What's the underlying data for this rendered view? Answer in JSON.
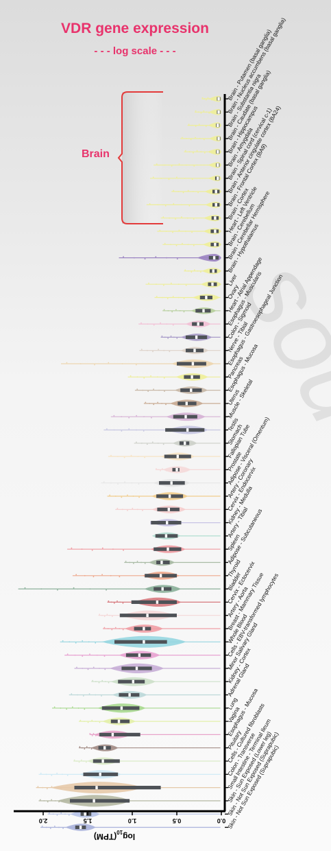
{
  "header": {
    "title": "VDR gene expression",
    "subtitle": "- - - log scale - - -",
    "group_label": "Brain"
  },
  "chart_data": {
    "type": "violin",
    "orientation": "horizontal",
    "title": "VDR gene expression",
    "subtitle": "- - - log scale - - -",
    "xlabel": "log10(TPM)",
    "xlabel_base": "log",
    "xlabel_sub": "10",
    "xlabel_tail": "(TPM)",
    "x_reversed": true,
    "xlim": [
      0,
      2.3
    ],
    "xticks": [
      "2.0",
      "1.5",
      "1.0",
      "0.5",
      "0.0"
    ],
    "xtick_values": [
      2.0,
      1.5,
      1.0,
      0.5,
      0.0
    ],
    "annotation": {
      "label": "Brain",
      "from": "Brain - Putamen (basal ganglia)",
      "to": "Brain - Cerebellar Hemisphere"
    },
    "tissues": [
      {
        "name": "Brain - Putamen (basal ganglia)",
        "color": "#eeee99",
        "median": 0.03,
        "q1": 0.01,
        "q3": 0.05,
        "width": 0.05,
        "max": 0.22
      },
      {
        "name": "Brain - Nucleus accumbens (basal ganglia)",
        "color": "#eeee99",
        "median": 0.03,
        "q1": 0.01,
        "q3": 0.05,
        "width": 0.06,
        "max": 0.3
      },
      {
        "name": "Brain - Substantia nigra",
        "color": "#eeee99",
        "median": 0.04,
        "q1": 0.02,
        "q3": 0.06,
        "width": 0.05,
        "max": 0.38
      },
      {
        "name": "Brain - Caudate (basal ganglia)",
        "color": "#eeee99",
        "median": 0.03,
        "q1": 0.01,
        "q3": 0.05,
        "width": 0.05,
        "max": 0.46
      },
      {
        "name": "Brain - Hippocampus",
        "color": "#eeee99",
        "median": 0.04,
        "q1": 0.02,
        "q3": 0.06,
        "width": 0.06,
        "max": 0.42
      },
      {
        "name": "Brain - Amygdala",
        "color": "#eeee99",
        "median": 0.04,
        "q1": 0.02,
        "q3": 0.06,
        "width": 0.05,
        "max": 0.76
      },
      {
        "name": "Brain - Spinal cord (cervical c-1)",
        "color": "#eeee99",
        "median": 0.04,
        "q1": 0.02,
        "q3": 0.07,
        "width": 0.05,
        "max": 0.8
      },
      {
        "name": "Brain - Anterior cingulate cortex (BA24)",
        "color": "#eeee99",
        "median": 0.06,
        "q1": 0.02,
        "q3": 0.1,
        "width": 0.09,
        "max": 0.56
      },
      {
        "name": "Brain - Frontal Cortex (BA9)",
        "color": "#eeee99",
        "median": 0.06,
        "q1": 0.02,
        "q3": 0.1,
        "width": 0.08,
        "max": 0.84
      },
      {
        "name": "Brain - Cortex",
        "color": "#eeee99",
        "median": 0.07,
        "q1": 0.03,
        "q3": 0.11,
        "width": 0.09,
        "max": 0.68
      },
      {
        "name": "Heart - Left Ventricle",
        "color": "#eeee99",
        "median": 0.07,
        "q1": 0.03,
        "q3": 0.12,
        "width": 0.1,
        "max": 0.72
      },
      {
        "name": "Brain - Cerebellum",
        "color": "#eeee99",
        "median": 0.07,
        "q1": 0.03,
        "q3": 0.12,
        "width": 0.11,
        "max": 0.66
      },
      {
        "name": "Brain - Cerebellar Hemisphere",
        "color": "#9b83c2",
        "median": 0.08,
        "q1": 0.03,
        "q3": 0.14,
        "width": 0.22,
        "max": 1.15
      },
      {
        "name": "Brain - Hypothalamus",
        "color": "#eeee99",
        "median": 0.09,
        "q1": 0.05,
        "q3": 0.13,
        "width": 0.09,
        "max": 0.42
      },
      {
        "name": "Liver",
        "color": "#eeee99",
        "median": 0.1,
        "q1": 0.05,
        "q3": 0.15,
        "width": 0.1,
        "max": 0.85
      },
      {
        "name": "Ovary",
        "color": "#eeee99",
        "median": 0.17,
        "q1": 0.1,
        "q3": 0.24,
        "width": 0.14,
        "max": 0.75
      },
      {
        "name": "Heart - Atrial Appendage",
        "color": "#b7cf9c",
        "median": 0.2,
        "q1": 0.12,
        "q3": 0.29,
        "width": 0.12,
        "max": 0.66
      },
      {
        "name": "Esophagus - Muscularis",
        "color": "#f2c0d5",
        "median": 0.26,
        "q1": 0.2,
        "q3": 0.33,
        "width": 0.12,
        "max": 0.93
      },
      {
        "name": "Colon - Sigmoid",
        "color": "#a89bc9",
        "median": 0.28,
        "q1": 0.16,
        "q3": 0.4,
        "width": 0.19,
        "max": 0.68
      },
      {
        "name": "Nerve - Tibial",
        "color": "#ddd2c8",
        "median": 0.3,
        "q1": 0.2,
        "q3": 0.4,
        "width": 0.15,
        "max": 0.92
      },
      {
        "name": "Esophagus - Gastroesophageal Junction",
        "color": "#edd6b0",
        "median": 0.32,
        "q1": 0.17,
        "q3": 0.5,
        "width": 0.32,
        "max": 1.8
      },
      {
        "name": "Pancreas",
        "color": "#eeee99",
        "median": 0.33,
        "q1": 0.24,
        "q3": 0.42,
        "width": 0.2,
        "max": 1.05
      },
      {
        "name": "Esophagus - Mucosa",
        "color": "#c9b9a8",
        "median": 0.34,
        "q1": 0.22,
        "q3": 0.46,
        "width": 0.21,
        "max": 0.97
      },
      {
        "name": "Uterus",
        "color": "#c9ab93",
        "median": 0.39,
        "q1": 0.28,
        "q3": 0.49,
        "width": 0.21,
        "max": 0.87
      },
      {
        "name": "Muscle - Skeletal",
        "color": "#d6b2d5",
        "median": 0.4,
        "q1": 0.27,
        "q3": 0.54,
        "width": 0.28,
        "max": 1.24
      },
      {
        "name": "Testis",
        "color": "#c7c7e2",
        "median": 0.38,
        "q1": 0.19,
        "q3": 0.63,
        "width": 0.3,
        "max": 1.32
      },
      {
        "name": "Stomach",
        "color": "#cdd0c9",
        "median": 0.41,
        "q1": 0.36,
        "q3": 0.47,
        "width": 0.11,
        "max": 0.98
      },
      {
        "name": "Fallopian Tube",
        "color": "#f7e3c3",
        "median": 0.49,
        "q1": 0.34,
        "q3": 0.64,
        "width": 0.22,
        "max": 1.27
      },
      {
        "name": "Prostate",
        "color": "#f5d9d9",
        "median": 0.5,
        "q1": 0.47,
        "q3": 0.55,
        "width": 0.15,
        "max": 0.74
      },
      {
        "name": "Adipose - Visceral (Omentum)",
        "color": "#e6e6e6",
        "median": 0.56,
        "q1": 0.41,
        "q3": 0.7,
        "width": 0.25,
        "max": 1.35
      },
      {
        "name": "Artery - Coronary",
        "color": "#f2cd8c",
        "median": 0.58,
        "q1": 0.43,
        "q3": 0.73,
        "width": 0.25,
        "max": 1.28
      },
      {
        "name": "Cervix - Endocervix",
        "color": "#f5cdcd",
        "median": 0.59,
        "q1": 0.47,
        "q3": 0.72,
        "width": 0.22,
        "max": 1.19
      },
      {
        "name": "Kidney - Medulla",
        "color": "#c8c3e5",
        "median": 0.61,
        "q1": 0.45,
        "q3": 0.79,
        "width": 0.19,
        "max": 0.79
      },
      {
        "name": "Artery - Tibial",
        "color": "#b0ddd0",
        "median": 0.62,
        "q1": 0.49,
        "q3": 0.74,
        "width": 0.16,
        "max": 0.74
      },
      {
        "name": "Spleen",
        "color": "#f09aa1",
        "median": 0.6,
        "q1": 0.45,
        "q3": 0.76,
        "width": 0.23,
        "max": 1.73
      },
      {
        "name": "Adipose - Subcutaneous",
        "color": "#a9baa4",
        "median": 0.67,
        "q1": 0.58,
        "q3": 0.73,
        "width": 0.13,
        "max": 1.09
      },
      {
        "name": "Thyroid",
        "color": "#eea78c",
        "median": 0.68,
        "q1": 0.5,
        "q3": 0.86,
        "width": 0.26,
        "max": 1.67
      },
      {
        "name": "Bladder",
        "color": "#8bb09a",
        "median": 0.66,
        "q1": 0.56,
        "q3": 0.76,
        "width": 0.25,
        "max": 2.28
      },
      {
        "name": "Cervix - Ectocervix",
        "color": "#d7797e",
        "median": 0.72,
        "q1": 0.5,
        "q3": 1.01,
        "width": 0.38,
        "max": 1.28
      },
      {
        "name": "Artery - Aorta",
        "color": "#f5d7d7",
        "median": 0.83,
        "q1": 0.5,
        "q3": 1.14,
        "width": 0.44,
        "max": 1.38
      },
      {
        "name": "Breast - Mammary Tissue",
        "color": "#ef9fa5",
        "median": 0.87,
        "q1": 0.79,
        "q3": 0.98,
        "width": 0.27,
        "max": 1.33
      },
      {
        "name": "Whole Blood",
        "color": "#96d6e0",
        "median": 0.87,
        "q1": 0.61,
        "q3": 1.2,
        "width": 0.79,
        "max": 1.81
      },
      {
        "name": "Cells - EBV-transformed lymphocytes",
        "color": "#e8a3d2",
        "median": 0.92,
        "q1": 0.79,
        "q3": 1.07,
        "width": 0.3,
        "max": 1.76
      },
      {
        "name": "Minor Salivary Gland",
        "color": "#c7aed6",
        "median": 0.95,
        "q1": 0.78,
        "q3": 1.12,
        "width": 0.45,
        "max": 1.65
      },
      {
        "name": "Kidney - Cortex",
        "color": "#cde0c9",
        "median": 0.99,
        "q1": 0.86,
        "q3": 1.16,
        "width": 0.34,
        "max": 1.46
      },
      {
        "name": "Adrenal Gland",
        "color": "#bdd8d9",
        "median": 1.03,
        "q1": 0.92,
        "q3": 1.15,
        "width": 0.23,
        "max": 1.71
      },
      {
        "name": "Lung",
        "color": "#a8d98f",
        "median": 1.12,
        "q1": 0.92,
        "q3": 1.34,
        "width": 0.38,
        "max": 1.9
      },
      {
        "name": "Vagina",
        "color": "#e3f0a9",
        "median": 1.15,
        "q1": 1.03,
        "q3": 1.24,
        "width": 0.21,
        "max": 1.6
      },
      {
        "name": "Esophagus - Mucosa",
        "color": "#e8a3c9",
        "median": 1.22,
        "q1": 0.91,
        "q3": 1.37,
        "width": 0.26,
        "max": 1.48
      },
      {
        "name": "Pituitary",
        "color": "#a38d86",
        "median": 1.31,
        "q1": 1.24,
        "q3": 1.38,
        "width": 0.14,
        "max": 1.6
      },
      {
        "name": "Cells - Cultured fibroblasts",
        "color": "#dcebc8",
        "median": 1.33,
        "q1": 1.14,
        "q3": 1.44,
        "width": 0.19,
        "max": 1.66
      },
      {
        "name": "Colon - Transverse",
        "color": "#cde9f5",
        "median": 1.36,
        "q1": 1.16,
        "q3": 1.55,
        "width": 0.31,
        "max": 2.05
      },
      {
        "name": "Small Intestine - Terminal Ileum",
        "color": "#e5c9a8",
        "median": 1.4,
        "q1": 0.68,
        "q3": 1.65,
        "width": 0.88,
        "max": 2.08
      },
      {
        "name": "Skin - Sun Exposed (Lower leg)",
        "color": "#b5b8a2",
        "median": 1.43,
        "q1": 1.03,
        "q3": 1.7,
        "width": 0.67,
        "max": 2.05
      },
      {
        "name": "Skin - Not Sun Exposed (Suprapubic)",
        "color": "#b8c4e8",
        "median": 1.53,
        "q1": 1.46,
        "q3": 1.58,
        "width": 0.17,
        "max": 1.95
      },
      {
        "name": "Skin - Not Sun Exposed (Suprapubic)",
        "color": "#aab2dc",
        "median": 1.58,
        "q1": 1.52,
        "q3": 1.64,
        "width": 0.18,
        "max": 2.03
      }
    ]
  }
}
